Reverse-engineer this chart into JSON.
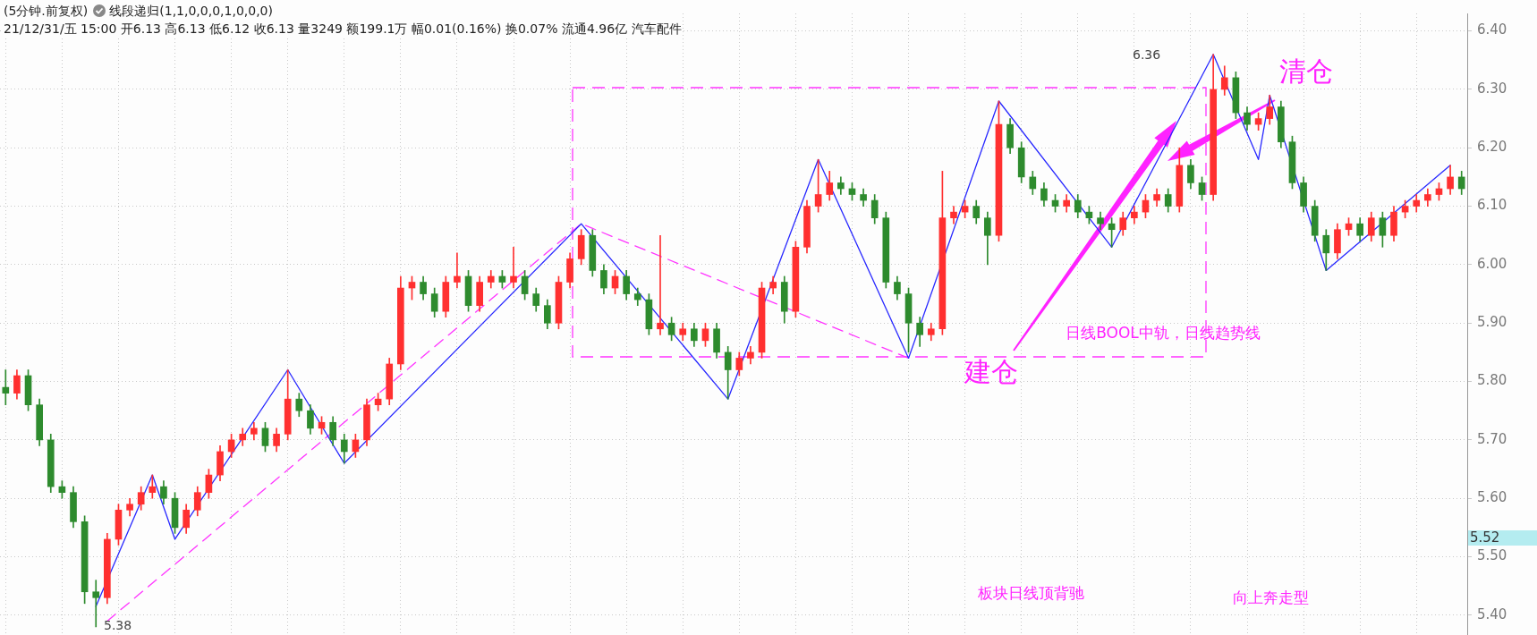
{
  "chart_data": {
    "type": "candlestick",
    "title": "(5分钟.前复权)",
    "subtitle": "21/12/31/五 15:00 开6.13 高6.13 低6.12 收6.13 量3249 额199.1万 幅0.01(0.16%) 换0.07% 流通4.96亿 汽车配件",
    "categories": [
      null,
      null,
      null,
      null,
      null,
      null,
      null,
      null,
      null,
      null,
      null,
      null,
      null,
      null,
      null,
      null,
      null,
      null,
      null,
      null,
      null,
      null,
      null,
      null,
      null,
      null,
      null,
      null,
      null,
      null,
      null,
      null,
      null,
      null,
      null,
      null,
      null,
      null,
      null,
      null,
      null,
      null,
      null,
      null,
      null,
      null,
      null,
      null,
      null,
      null,
      null,
      null,
      null,
      null,
      null,
      null,
      null,
      null,
      null,
      null,
      null,
      null,
      null,
      null,
      null,
      null,
      null,
      null,
      null,
      null,
      null,
      null,
      null,
      null,
      null,
      null,
      null,
      null,
      null,
      null,
      null,
      null,
      null,
      null,
      null,
      null,
      null,
      null,
      null,
      null,
      null,
      null,
      null,
      null,
      null,
      null,
      null,
      null,
      null,
      null,
      null,
      null,
      null,
      null,
      null,
      null,
      null,
      null,
      null,
      null,
      null,
      null,
      null,
      null,
      null,
      null,
      null,
      null,
      null,
      null,
      null,
      null,
      null,
      null,
      null,
      null,
      null,
      null,
      null,
      null
    ],
    "ohlc": [
      [
        5.79,
        5.82,
        5.76,
        5.78
      ],
      [
        5.78,
        5.82,
        5.77,
        5.81
      ],
      [
        5.81,
        5.82,
        5.75,
        5.76
      ],
      [
        5.76,
        5.77,
        5.69,
        5.7
      ],
      [
        5.7,
        5.71,
        5.61,
        5.62
      ],
      [
        5.62,
        5.63,
        5.6,
        5.61
      ],
      [
        5.61,
        5.62,
        5.55,
        5.56
      ],
      [
        5.56,
        5.57,
        5.42,
        5.44
      ],
      [
        5.44,
        5.46,
        5.38,
        5.43
      ],
      [
        5.43,
        5.54,
        5.42,
        5.53
      ],
      [
        5.53,
        5.59,
        5.52,
        5.58
      ],
      [
        5.58,
        5.6,
        5.57,
        5.59
      ],
      [
        5.59,
        5.62,
        5.58,
        5.61
      ],
      [
        5.61,
        5.64,
        5.6,
        5.62
      ],
      [
        5.62,
        5.63,
        5.59,
        5.6
      ],
      [
        5.6,
        5.61,
        5.54,
        5.55
      ],
      [
        5.55,
        5.59,
        5.54,
        5.58
      ],
      [
        5.58,
        5.62,
        5.57,
        5.61
      ],
      [
        5.61,
        5.65,
        5.6,
        5.64
      ],
      [
        5.64,
        5.69,
        5.63,
        5.68
      ],
      [
        5.68,
        5.71,
        5.67,
        5.7
      ],
      [
        5.7,
        5.72,
        5.69,
        5.71
      ],
      [
        5.71,
        5.73,
        5.7,
        5.72
      ],
      [
        5.72,
        5.73,
        5.68,
        5.69
      ],
      [
        5.69,
        5.72,
        5.68,
        5.71
      ],
      [
        5.71,
        5.82,
        5.7,
        5.77
      ],
      [
        5.77,
        5.78,
        5.74,
        5.75
      ],
      [
        5.75,
        5.76,
        5.71,
        5.72
      ],
      [
        5.72,
        5.74,
        5.71,
        5.73
      ],
      [
        5.73,
        5.74,
        5.69,
        5.7
      ],
      [
        5.7,
        5.71,
        5.66,
        5.68
      ],
      [
        5.68,
        5.71,
        5.67,
        5.7
      ],
      [
        5.7,
        5.77,
        5.69,
        5.76
      ],
      [
        5.76,
        5.78,
        5.75,
        5.77
      ],
      [
        5.77,
        5.84,
        5.76,
        5.83
      ],
      [
        5.83,
        5.98,
        5.82,
        5.96
      ],
      [
        5.96,
        5.98,
        5.94,
        5.97
      ],
      [
        5.97,
        5.98,
        5.94,
        5.95
      ],
      [
        5.95,
        5.96,
        5.91,
        5.92
      ],
      [
        5.92,
        5.98,
        5.91,
        5.97
      ],
      [
        5.97,
        6.02,
        5.96,
        5.98
      ],
      [
        5.98,
        5.99,
        5.92,
        5.93
      ],
      [
        5.93,
        5.98,
        5.92,
        5.97
      ],
      [
        5.97,
        5.99,
        5.96,
        5.98
      ],
      [
        5.98,
        5.99,
        5.96,
        5.97
      ],
      [
        5.97,
        6.03,
        5.96,
        5.98
      ],
      [
        5.98,
        5.99,
        5.94,
        5.95
      ],
      [
        5.95,
        5.96,
        5.92,
        5.93
      ],
      [
        5.93,
        5.94,
        5.89,
        5.9
      ],
      [
        5.9,
        5.98,
        5.89,
        5.97
      ],
      [
        5.97,
        6.02,
        5.96,
        6.01
      ],
      [
        6.01,
        6.06,
        6.0,
        6.05
      ],
      [
        6.05,
        6.06,
        5.98,
        5.99
      ],
      [
        5.99,
        6.0,
        5.95,
        5.96
      ],
      [
        5.96,
        5.99,
        5.95,
        5.98
      ],
      [
        5.98,
        5.99,
        5.94,
        5.95
      ],
      [
        5.95,
        5.96,
        5.93,
        5.94
      ],
      [
        5.94,
        5.95,
        5.88,
        5.89
      ],
      [
        5.89,
        6.05,
        5.88,
        5.9
      ],
      [
        5.9,
        5.91,
        5.87,
        5.88
      ],
      [
        5.88,
        5.9,
        5.87,
        5.89
      ],
      [
        5.89,
        5.9,
        5.86,
        5.87
      ],
      [
        5.87,
        5.9,
        5.86,
        5.89
      ],
      [
        5.89,
        5.9,
        5.84,
        5.85
      ],
      [
        5.85,
        5.86,
        5.77,
        5.82
      ],
      [
        5.82,
        5.85,
        5.81,
        5.84
      ],
      [
        5.84,
        5.86,
        5.83,
        5.85
      ],
      [
        5.85,
        5.97,
        5.84,
        5.96
      ],
      [
        5.96,
        5.98,
        5.95,
        5.97
      ],
      [
        5.97,
        5.98,
        5.9,
        5.92
      ],
      [
        5.92,
        6.04,
        5.91,
        6.03
      ],
      [
        6.03,
        6.11,
        6.02,
        6.1
      ],
      [
        6.1,
        6.18,
        6.09,
        6.12
      ],
      [
        6.12,
        6.16,
        6.11,
        6.14
      ],
      [
        6.14,
        6.15,
        6.12,
        6.13
      ],
      [
        6.13,
        6.14,
        6.11,
        6.12
      ],
      [
        6.12,
        6.13,
        6.1,
        6.11
      ],
      [
        6.11,
        6.12,
        6.07,
        6.08
      ],
      [
        6.08,
        6.09,
        5.96,
        5.97
      ],
      [
        5.97,
        5.98,
        5.94,
        5.95
      ],
      [
        5.95,
        5.96,
        5.85,
        5.9
      ],
      [
        5.9,
        5.91,
        5.86,
        5.88
      ],
      [
        5.88,
        5.9,
        5.87,
        5.89
      ],
      [
        5.89,
        6.16,
        5.88,
        6.08
      ],
      [
        6.08,
        6.1,
        6.07,
        6.09
      ],
      [
        6.09,
        6.11,
        6.08,
        6.1
      ],
      [
        6.1,
        6.11,
        6.07,
        6.08
      ],
      [
        6.08,
        6.09,
        6.0,
        6.05
      ],
      [
        6.05,
        6.28,
        6.04,
        6.24
      ],
      [
        6.24,
        6.25,
        6.19,
        6.2
      ],
      [
        6.2,
        6.21,
        6.14,
        6.15
      ],
      [
        6.15,
        6.16,
        6.12,
        6.13
      ],
      [
        6.13,
        6.14,
        6.1,
        6.11
      ],
      [
        6.11,
        6.12,
        6.09,
        6.1
      ],
      [
        6.1,
        6.12,
        6.09,
        6.11
      ],
      [
        6.11,
        6.12,
        6.08,
        6.09
      ],
      [
        6.09,
        6.1,
        6.07,
        6.08
      ],
      [
        6.08,
        6.09,
        6.06,
        6.07
      ],
      [
        6.07,
        6.08,
        6.03,
        6.06
      ],
      [
        6.06,
        6.09,
        6.05,
        6.08
      ],
      [
        6.08,
        6.1,
        6.07,
        6.09
      ],
      [
        6.09,
        6.12,
        6.08,
        6.11
      ],
      [
        6.11,
        6.13,
        6.1,
        6.12
      ],
      [
        6.12,
        6.13,
        6.09,
        6.1
      ],
      [
        6.1,
        6.2,
        6.09,
        6.17
      ],
      [
        6.17,
        6.18,
        6.13,
        6.14
      ],
      [
        6.14,
        6.15,
        6.11,
        6.12
      ],
      [
        6.12,
        6.36,
        6.11,
        6.3
      ],
      [
        6.3,
        6.34,
        6.29,
        6.32
      ],
      [
        6.32,
        6.33,
        6.25,
        6.26
      ],
      [
        6.26,
        6.27,
        6.23,
        6.24
      ],
      [
        6.24,
        6.26,
        6.23,
        6.25
      ],
      [
        6.25,
        6.29,
        6.24,
        6.27
      ],
      [
        6.27,
        6.28,
        6.2,
        6.21
      ],
      [
        6.21,
        6.22,
        6.13,
        6.14
      ],
      [
        6.14,
        6.15,
        6.09,
        6.1
      ],
      [
        6.1,
        6.11,
        6.04,
        6.05
      ],
      [
        6.05,
        6.06,
        5.99,
        6.02
      ],
      [
        6.02,
        6.07,
        6.01,
        6.06
      ],
      [
        6.06,
        6.08,
        6.05,
        6.07
      ],
      [
        6.07,
        6.08,
        6.04,
        6.05
      ],
      [
        6.05,
        6.09,
        6.04,
        6.08
      ],
      [
        6.08,
        6.09,
        6.03,
        6.05
      ],
      [
        6.05,
        6.1,
        6.04,
        6.09
      ],
      [
        6.09,
        6.11,
        6.08,
        6.1
      ],
      [
        6.1,
        6.12,
        6.09,
        6.11
      ],
      [
        6.11,
        6.13,
        6.1,
        6.12
      ],
      [
        6.12,
        6.14,
        6.11,
        6.13
      ],
      [
        6.13,
        6.17,
        6.12,
        6.15
      ],
      [
        6.15,
        6.16,
        6.12,
        6.13
      ]
    ],
    "series": [
      {
        "type": "line",
        "color": "#2828ff",
        "line_style": "solid",
        "marker": "none",
        "values": [
          null,
          null,
          null,
          null,
          null,
          null,
          null,
          null,
          5.415,
          null,
          null,
          null,
          null,
          5.64,
          null,
          5.53,
          null,
          null,
          null,
          null,
          null,
          null,
          null,
          null,
          null,
          5.82,
          null,
          null,
          null,
          null,
          5.66,
          null,
          null,
          null,
          null,
          null,
          null,
          null,
          null,
          null,
          null,
          null,
          null,
          null,
          null,
          null,
          null,
          null,
          null,
          null,
          null,
          6.07,
          null,
          null,
          null,
          null,
          null,
          null,
          null,
          null,
          null,
          null,
          null,
          null,
          5.77,
          null,
          null,
          null,
          null,
          null,
          null,
          null,
          6.18,
          null,
          null,
          null,
          null,
          null,
          null,
          null,
          5.84,
          null,
          null,
          null,
          null,
          null,
          null,
          null,
          6.28,
          null,
          null,
          null,
          null,
          null,
          null,
          null,
          null,
          null,
          6.03,
          null,
          null,
          null,
          null,
          null,
          null,
          null,
          null,
          6.36,
          null,
          null,
          null,
          6.18,
          6.29,
          null,
          null,
          null,
          null,
          5.99,
          null,
          null,
          null,
          null,
          null,
          null,
          null,
          null,
          null,
          null,
          6.17,
          null
        ]
      },
      {
        "type": "line",
        "color": "#ff33ff",
        "line_style": "dashed",
        "marker": "none",
        "values": [
          null,
          null,
          null,
          null,
          null,
          null,
          null,
          null,
          null,
          5.39,
          null,
          null,
          null,
          null,
          null,
          null,
          null,
          null,
          null,
          null,
          null,
          null,
          null,
          null,
          null,
          null,
          null,
          null,
          null,
          null,
          null,
          null,
          null,
          null,
          null,
          null,
          null,
          null,
          null,
          null,
          null,
          null,
          null,
          null,
          null,
          null,
          null,
          null,
          null,
          null,
          null,
          6.07,
          null,
          null,
          null,
          null,
          null,
          null,
          null,
          null,
          null,
          null,
          null,
          null,
          null,
          null,
          null,
          null,
          null,
          null,
          null,
          null,
          null,
          null,
          null,
          null,
          null,
          null,
          null,
          null,
          5.84,
          null,
          null,
          null,
          null,
          null,
          null,
          null,
          null,
          null,
          null,
          null,
          null,
          null,
          null,
          null,
          null,
          null,
          null,
          null,
          null,
          null,
          null,
          null,
          null,
          null,
          null,
          null,
          null,
          null,
          null,
          null,
          null,
          null,
          null,
          null,
          null,
          null,
          null,
          null,
          null,
          null,
          null,
          null,
          null,
          null,
          null,
          null,
          null,
          null
        ]
      }
    ],
    "ylim": [
      5.36,
      6.43
    ],
    "yticks": [
      {
        "value": 5.4,
        "label": "5.40"
      },
      {
        "value": 5.5,
        "label": "5.50"
      },
      {
        "value": 5.6,
        "label": "5.60"
      },
      {
        "value": 5.7,
        "label": "5.70"
      },
      {
        "value": 5.8,
        "label": "5.80"
      },
      {
        "value": 5.9,
        "label": "5.90"
      },
      {
        "value": 6.0,
        "label": "6.00"
      },
      {
        "value": 6.1,
        "label": "6.10"
      },
      {
        "value": 6.2,
        "label": "6.20"
      },
      {
        "value": 6.3,
        "label": "6.30"
      },
      {
        "value": 6.4,
        "label": "6.40"
      }
    ],
    "tick_labels": "y",
    "grid": true,
    "legend": false,
    "annotations": [
      "线段递归(1,1,0,0,0,1,0,0,0)",
      "清仓",
      "建仓",
      "日线BOOL中轨，日线趋势线",
      "板块日线顶背驰",
      "向上奔走型",
      "6.36",
      "5.38",
      "5.52"
    ]
  }
}
